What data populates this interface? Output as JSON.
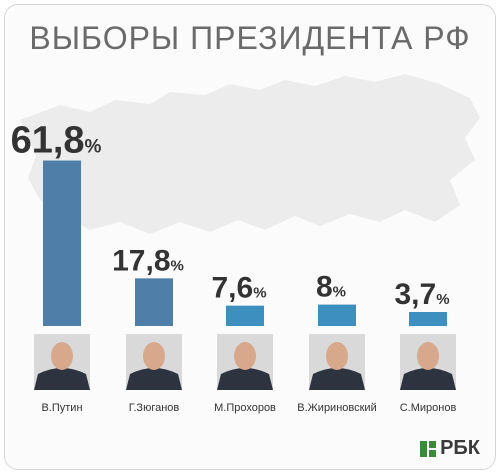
{
  "chart_data": {
    "type": "bar",
    "title": "ВЫБОРЫ ПРЕЗИДЕНТА РФ",
    "categories": [
      "В.Путин",
      "Г.Зюганов",
      "М.Прохоров",
      "В.Жириновский",
      "С.Миронов"
    ],
    "values": [
      61.8,
      17.8,
      7.6,
      8,
      3.7
    ],
    "value_labels": [
      "61,8",
      "17,8",
      "7,6",
      "8",
      "3,7"
    ],
    "unit": "%",
    "ylim": [
      0,
      62
    ],
    "colors": {
      "bar_dark": "#4f7fa8",
      "bar_light": "#3d8fbf"
    },
    "legend": "none",
    "grid": false
  },
  "logo": {
    "text": "РБК"
  }
}
